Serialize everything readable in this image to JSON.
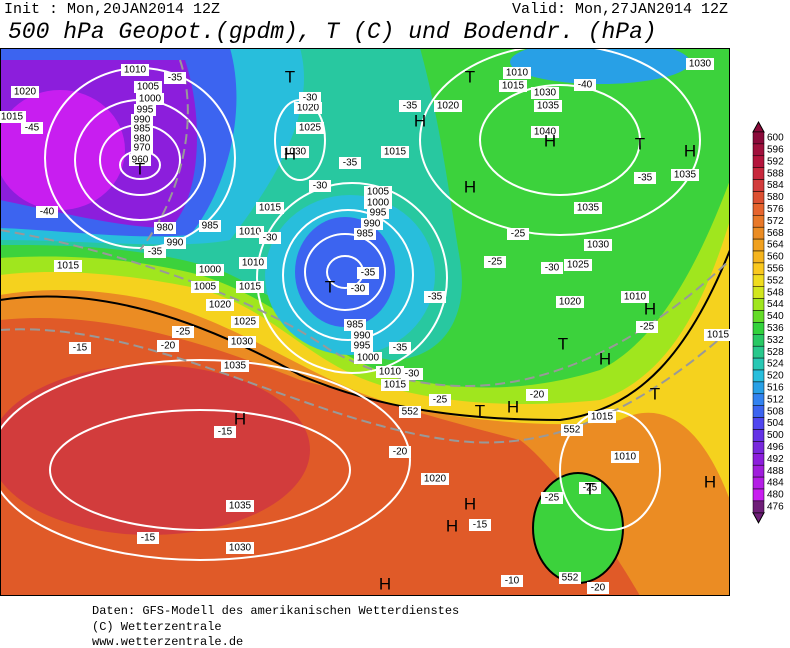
{
  "header": {
    "init": "Init : Mon,20JAN2014  12Z",
    "valid": "Valid: Mon,27JAN2014  12Z",
    "title": "500 hPa Geopot.(gpdm), T (C) und Bodendr. (hPa)"
  },
  "footer": [
    "Daten: GFS-Modell des amerikanischen Wetterdienstes",
    "(C) Wetterzentrale",
    "www.wetterzentrale.de"
  ],
  "colorbar": {
    "values": [
      600,
      596,
      592,
      588,
      584,
      580,
      576,
      572,
      568,
      564,
      560,
      556,
      552,
      548,
      544,
      540,
      536,
      532,
      528,
      524,
      520,
      516,
      512,
      508,
      504,
      500,
      496,
      492,
      488,
      484,
      480,
      476
    ],
    "colors": [
      "#8b0a3a",
      "#a0103c",
      "#b4143c",
      "#c8283c",
      "#d23c3c",
      "#dc5032",
      "#e6642d",
      "#e87828",
      "#eb8c23",
      "#f0a01e",
      "#f5b41e",
      "#fac81e",
      "#f0dc1e",
      "#d2e61e",
      "#a0e61e",
      "#64dc28",
      "#32d23c",
      "#28c864",
      "#28c88c",
      "#28c8b4",
      "#28bedc",
      "#28a0e6",
      "#3282f0",
      "#3c64f0",
      "#5046f0",
      "#6432e6",
      "#7828dc",
      "#8c1edc",
      "#a01edc",
      "#b41ee6",
      "#c81ef0",
      "#6e1e78"
    ]
  },
  "map_labels": [
    "1010",
    "1005",
    "1000",
    "995",
    "990",
    "985",
    "980",
    "970",
    "960",
    "1020",
    "1015",
    "-45",
    "-40",
    "-35",
    "-35",
    "990",
    "985",
    "980",
    "1015",
    "1000",
    "1005",
    "1010",
    "1015",
    "1020",
    "1025",
    "1030",
    "1035",
    "-25",
    "-20",
    "-15",
    "-15",
    "1035",
    "1030",
    "-15",
    "1020",
    "1025",
    "1030",
    "-30",
    "-30",
    "-35",
    "1015",
    "1010",
    "-30",
    "1005",
    "1000",
    "995",
    "990",
    "985",
    "-35",
    "-30",
    "-35",
    "985",
    "990",
    "995",
    "1000",
    "1010",
    "1015",
    "-35",
    "-30",
    "552",
    "-25",
    "-20",
    "1020",
    "-15",
    "-10",
    "1015",
    "-35",
    "1020",
    "1010",
    "1015",
    "1030",
    "1035",
    "-40",
    "1040",
    "1030",
    "-35",
    "1035",
    "1035",
    "1030",
    "1025",
    "-30",
    "-25",
    "-25",
    "1020",
    "1010",
    "-25",
    "1015",
    "-20",
    "1015",
    "552",
    "1010",
    "-25",
    "-25",
    "552",
    "-20"
  ],
  "pressure_centers": [
    "H",
    "H",
    "H",
    "H",
    "H",
    "H",
    "H",
    "H",
    "H",
    "H",
    "H",
    "H",
    "H",
    "T",
    "T",
    "T",
    "T",
    "T",
    "T",
    "T",
    "T",
    "T"
  ]
}
